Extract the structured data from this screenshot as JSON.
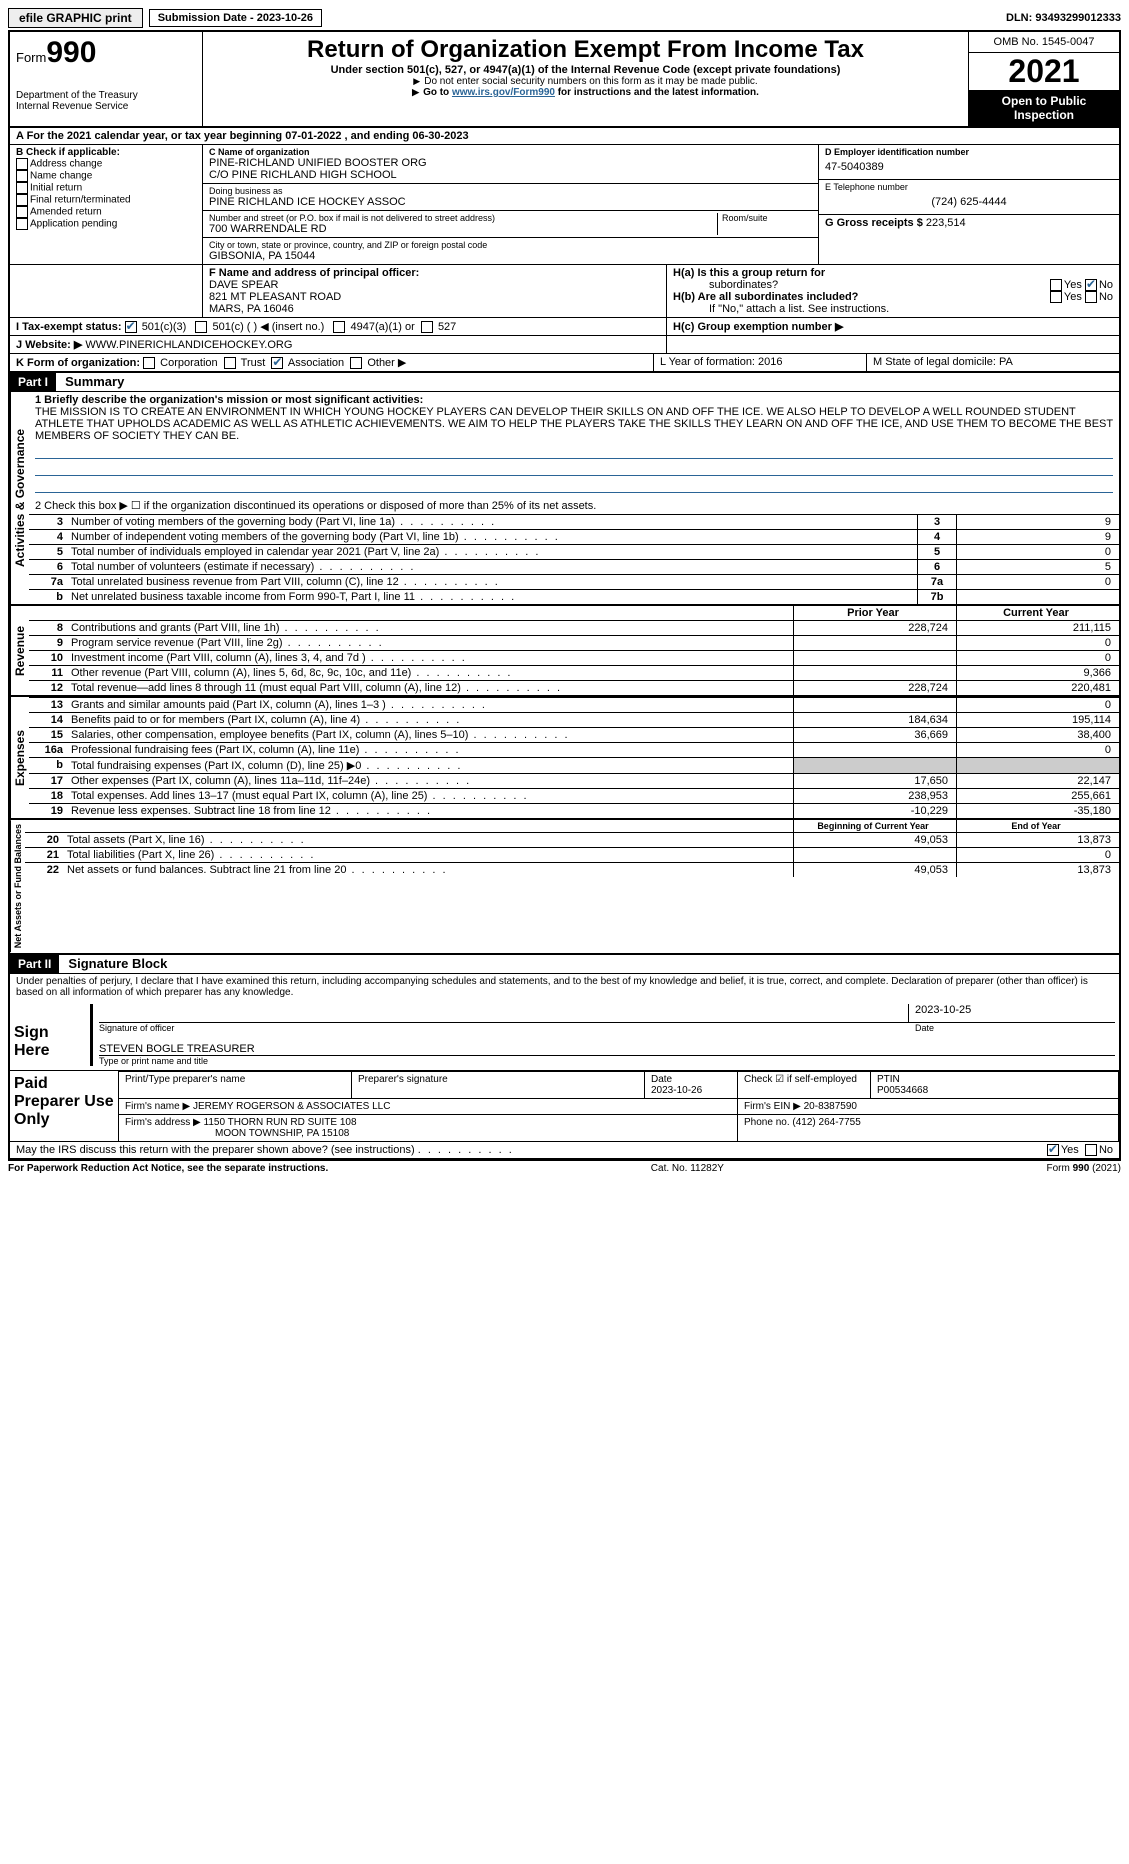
{
  "topbar": {
    "efile": "efile GRAPHIC print",
    "submission_label": "Submission Date - 2023-10-26",
    "dln": "DLN: 93493299012333"
  },
  "header": {
    "form_prefix": "Form",
    "form_number": "990",
    "dept": "Department of the Treasury",
    "irs": "Internal Revenue Service",
    "title": "Return of Organization Exempt From Income Tax",
    "subtitle": "Under section 501(c), 527, or 4947(a)(1) of the Internal Revenue Code (except private foundations)",
    "instr1": "Do not enter social security numbers on this form as it may be made public.",
    "instr2_pre": "Go to ",
    "instr2_link": "www.irs.gov/Form990",
    "instr2_post": " for instructions and the latest information.",
    "omb": "OMB No. 1545-0047",
    "year": "2021",
    "open_pub": "Open to Public Inspection"
  },
  "row_a": "A For the 2021 calendar year, or tax year beginning 07-01-2022   , and ending 06-30-2023",
  "col_b": {
    "title": "B Check if applicable:",
    "items": [
      "Address change",
      "Name change",
      "Initial return",
      "Final return/terminated",
      "Amended return",
      "Application pending"
    ]
  },
  "col_c": {
    "name_label": "C Name of organization",
    "name1": "PINE-RICHLAND UNIFIED BOOSTER ORG",
    "name2": "C/O PINE RICHLAND HIGH SCHOOL",
    "dba_label": "Doing business as",
    "dba": "PINE RICHLAND ICE HOCKEY ASSOC",
    "street_label": "Number and street (or P.O. box if mail is not delivered to street address)",
    "street": "700 WARRENDALE RD",
    "room_label": "Room/suite",
    "city_label": "City or town, state or province, country, and ZIP or foreign postal code",
    "city": "GIBSONIA, PA  15044"
  },
  "col_d": {
    "ein_label": "D Employer identification number",
    "ein": "47-5040389",
    "phone_label": "E Telephone number",
    "phone": "(724) 625-4444",
    "gross_label": "G Gross receipts $",
    "gross": "223,514"
  },
  "row_f": {
    "label": "F  Name and address of principal officer:",
    "name": "DAVE SPEAR",
    "addr1": "821 MT PLEASANT ROAD",
    "addr2": "MARS, PA  16046"
  },
  "row_h": {
    "ha_label": "H(a)  Is this a group return for",
    "ha_sub": "subordinates?",
    "hb_label": "H(b)  Are all subordinates included?",
    "hb_note": "If \"No,\" attach a list. See instructions.",
    "hc_label": "H(c)  Group exemption number ▶"
  },
  "row_i": {
    "label": "I   Tax-exempt status:",
    "opt1": "501(c)(3)",
    "opt2": "501(c) (  ) ◀ (insert no.)",
    "opt3": "4947(a)(1) or",
    "opt4": "527"
  },
  "row_j": {
    "label": "J   Website: ▶",
    "value": "WWW.PINERICHLANDICEHOCKEY.ORG"
  },
  "row_k": {
    "label": "K Form of organization:",
    "opts": [
      "Corporation",
      "Trust",
      "Association",
      "Other ▶"
    ]
  },
  "row_l": {
    "l_label": "L Year of formation: 2016",
    "m_label": "M State of legal domicile: PA"
  },
  "part1": {
    "hdr": "Part I",
    "title": "Summary",
    "side_activities": "Activities & Governance",
    "side_revenue": "Revenue",
    "side_expenses": "Expenses",
    "side_net": "Net Assets or Fund Balances",
    "line1_label": "1  Briefly describe the organization's mission or most significant activities:",
    "mission": "THE MISSION IS TO CREATE AN ENVIRONMENT IN WHICH YOUNG HOCKEY PLAYERS CAN DEVELOP THEIR SKILLS ON AND OFF THE ICE. WE ALSO HELP TO DEVELOP A WELL ROUNDED STUDENT ATHLETE THAT UPHOLDS ACADEMIC AS WELL AS ATHLETIC ACHIEVEMENTS. WE AIM TO HELP THE PLAYERS TAKE THE SKILLS THEY LEARN ON AND OFF THE ICE, AND USE THEM TO BECOME THE BEST MEMBERS OF SOCIETY THEY CAN BE.",
    "line2": "2    Check this box ▶ ☐  if the organization discontinued its operations or disposed of more than 25% of its net assets.",
    "lines_gov": [
      {
        "n": "3",
        "text": "Number of voting members of the governing body (Part VI, line 1a)",
        "box": "3",
        "val": "9"
      },
      {
        "n": "4",
        "text": "Number of independent voting members of the governing body (Part VI, line 1b)",
        "box": "4",
        "val": "9"
      },
      {
        "n": "5",
        "text": "Total number of individuals employed in calendar year 2021 (Part V, line 2a)",
        "box": "5",
        "val": "0"
      },
      {
        "n": "6",
        "text": "Total number of volunteers (estimate if necessary)",
        "box": "6",
        "val": "5"
      },
      {
        "n": "7a",
        "text": "Total unrelated business revenue from Part VIII, column (C), line 12",
        "box": "7a",
        "val": "0"
      },
      {
        "n": "b",
        "text": "Net unrelated business taxable income from Form 990-T, Part I, line 11",
        "box": "7b",
        "val": ""
      }
    ],
    "col_prior": "Prior Year",
    "col_current": "Current Year",
    "lines_rev": [
      {
        "n": "8",
        "text": "Contributions and grants (Part VIII, line 1h)",
        "p": "228,724",
        "c": "211,115"
      },
      {
        "n": "9",
        "text": "Program service revenue (Part VIII, line 2g)",
        "p": "",
        "c": "0"
      },
      {
        "n": "10",
        "text": "Investment income (Part VIII, column (A), lines 3, 4, and 7d )",
        "p": "",
        "c": "0"
      },
      {
        "n": "11",
        "text": "Other revenue (Part VIII, column (A), lines 5, 6d, 8c, 9c, 10c, and 11e)",
        "p": "",
        "c": "9,366"
      },
      {
        "n": "12",
        "text": "Total revenue—add lines 8 through 11 (must equal Part VIII, column (A), line 12)",
        "p": "228,724",
        "c": "220,481"
      }
    ],
    "lines_exp": [
      {
        "n": "13",
        "text": "Grants and similar amounts paid (Part IX, column (A), lines 1–3 )",
        "p": "",
        "c": "0"
      },
      {
        "n": "14",
        "text": "Benefits paid to or for members (Part IX, column (A), line 4)",
        "p": "184,634",
        "c": "195,114"
      },
      {
        "n": "15",
        "text": "Salaries, other compensation, employee benefits (Part IX, column (A), lines 5–10)",
        "p": "36,669",
        "c": "38,400"
      },
      {
        "n": "16a",
        "text": "Professional fundraising fees (Part IX, column (A), line 11e)",
        "p": "",
        "c": "0"
      },
      {
        "n": "b",
        "text": "Total fundraising expenses (Part IX, column (D), line 25) ▶0",
        "p": "__grey__",
        "c": "__grey__"
      },
      {
        "n": "17",
        "text": "Other expenses (Part IX, column (A), lines 11a–11d, 11f–24e)",
        "p": "17,650",
        "c": "22,147"
      },
      {
        "n": "18",
        "text": "Total expenses. Add lines 13–17 (must equal Part IX, column (A), line 25)",
        "p": "238,953",
        "c": "255,661"
      },
      {
        "n": "19",
        "text": "Revenue less expenses. Subtract line 18 from line 12",
        "p": "-10,229",
        "c": "-35,180"
      }
    ],
    "col_begin": "Beginning of Current Year",
    "col_end": "End of Year",
    "lines_net": [
      {
        "n": "20",
        "text": "Total assets (Part X, line 16)",
        "p": "49,053",
        "c": "13,873"
      },
      {
        "n": "21",
        "text": "Total liabilities (Part X, line 26)",
        "p": "",
        "c": "0"
      },
      {
        "n": "22",
        "text": "Net assets or fund balances. Subtract line 21 from line 20",
        "p": "49,053",
        "c": "13,873"
      }
    ]
  },
  "part2": {
    "hdr": "Part II",
    "title": "Signature Block",
    "decl": "Under penalties of perjury, I declare that I have examined this return, including accompanying schedules and statements, and to the best of my knowledge and belief, it is true, correct, and complete. Declaration of preparer (other than officer) is based on all information of which preparer has any knowledge.",
    "sign_here": "Sign Here",
    "sig_officer": "Signature of officer",
    "sig_date": "2023-10-25",
    "date_label": "Date",
    "officer_name": "STEVEN BOGLE  TREASURER",
    "officer_label": "Type or print name and title",
    "paid": "Paid Preparer Use Only",
    "prep_name_label": "Print/Type preparer's name",
    "prep_sig_label": "Preparer's signature",
    "prep_date_label": "Date",
    "prep_date": "2023-10-26",
    "self_emp": "Check ☑ if self-employed",
    "ptin_label": "PTIN",
    "ptin": "P00534668",
    "firm_name_label": "Firm's name    ▶",
    "firm_name": "JEREMY ROGERSON & ASSOCIATES LLC",
    "firm_ein_label": "Firm's EIN ▶",
    "firm_ein": "20-8387590",
    "firm_addr_label": "Firm's address ▶",
    "firm_addr1": "1150 THORN RUN RD SUITE 108",
    "firm_addr2": "MOON TOWNSHIP, PA  15108",
    "firm_phone_label": "Phone no.",
    "firm_phone": "(412) 264-7755",
    "discuss": "May the IRS discuss this return with the preparer shown above? (see instructions)",
    "yes": "Yes",
    "no": "No"
  },
  "footer": {
    "left": "For Paperwork Reduction Act Notice, see the separate instructions.",
    "mid": "Cat. No. 11282Y",
    "right": "Form 990 (2021)"
  }
}
